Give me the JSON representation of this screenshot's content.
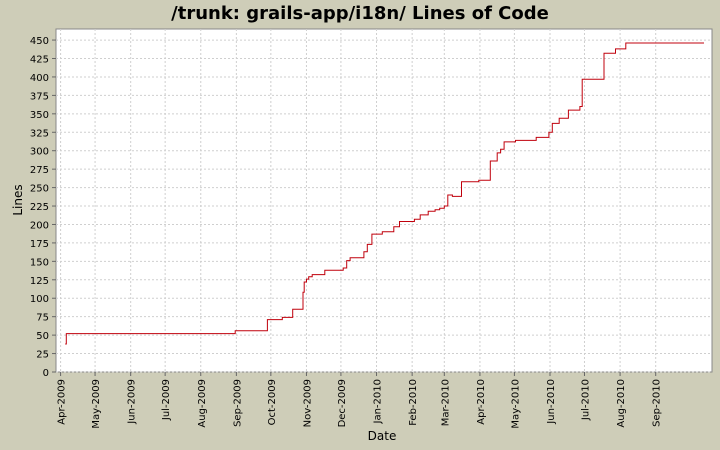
{
  "chart_data": {
    "type": "line",
    "title": "/trunk: grails-app/i18n/ Lines of Code",
    "xlabel": "Date",
    "ylabel": "Lines",
    "ylim": [
      0,
      465
    ],
    "xlim": [
      "2009-03-28",
      "2010-10-20"
    ],
    "grid": true,
    "yticks": [
      0,
      25,
      50,
      75,
      100,
      125,
      150,
      175,
      200,
      225,
      250,
      275,
      300,
      325,
      350,
      375,
      400,
      425,
      450
    ],
    "xticks": [
      {
        "date": "2009-04-01",
        "label": "Apr-2009"
      },
      {
        "date": "2009-05-01",
        "label": "May-2009"
      },
      {
        "date": "2009-06-01",
        "label": "Jun-2009"
      },
      {
        "date": "2009-07-01",
        "label": "Jul-2009"
      },
      {
        "date": "2009-08-01",
        "label": "Aug-2009"
      },
      {
        "date": "2009-09-01",
        "label": "Sep-2009"
      },
      {
        "date": "2009-10-01",
        "label": "Oct-2009"
      },
      {
        "date": "2009-11-01",
        "label": "Nov-2009"
      },
      {
        "date": "2009-12-01",
        "label": "Dec-2009"
      },
      {
        "date": "2010-01-01",
        "label": "Jan-2010"
      },
      {
        "date": "2010-02-01",
        "label": "Feb-2010"
      },
      {
        "date": "2010-03-01",
        "label": "Mar-2010"
      },
      {
        "date": "2010-04-01",
        "label": "Apr-2010"
      },
      {
        "date": "2010-05-01",
        "label": "May-2010"
      },
      {
        "date": "2010-06-01",
        "label": "Jun-2010"
      },
      {
        "date": "2010-07-01",
        "label": "Jul-2010"
      },
      {
        "date": "2010-08-01",
        "label": "Aug-2010"
      },
      {
        "date": "2010-09-01",
        "label": "Sep-2010"
      }
    ],
    "series": [
      {
        "color": "#c0000c",
        "step": true,
        "points": [
          [
            "2009-04-05",
            38
          ],
          [
            "2009-04-06",
            52
          ],
          [
            "2009-08-31",
            56
          ],
          [
            "2009-09-28",
            71
          ],
          [
            "2009-10-11",
            74
          ],
          [
            "2009-10-20",
            85
          ],
          [
            "2009-10-29",
            108
          ],
          [
            "2009-10-30",
            122
          ],
          [
            "2009-11-01",
            126
          ],
          [
            "2009-11-03",
            129
          ],
          [
            "2009-11-06",
            132
          ],
          [
            "2009-11-17",
            138
          ],
          [
            "2009-12-03",
            141
          ],
          [
            "2009-12-06",
            151
          ],
          [
            "2009-12-09",
            155
          ],
          [
            "2009-12-21",
            163
          ],
          [
            "2009-12-24",
            173
          ],
          [
            "2009-12-28",
            187
          ],
          [
            "2010-01-06",
            190
          ],
          [
            "2010-01-16",
            197
          ],
          [
            "2010-01-21",
            204
          ],
          [
            "2010-02-03",
            207
          ],
          [
            "2010-02-08",
            213
          ],
          [
            "2010-02-15",
            218
          ],
          [
            "2010-02-21",
            220
          ],
          [
            "2010-02-25",
            222
          ],
          [
            "2010-03-01",
            225
          ],
          [
            "2010-03-04",
            240
          ],
          [
            "2010-03-08",
            238
          ],
          [
            "2010-03-16",
            258
          ],
          [
            "2010-03-31",
            260
          ],
          [
            "2010-04-10",
            286
          ],
          [
            "2010-04-16",
            297
          ],
          [
            "2010-04-19",
            302
          ],
          [
            "2010-04-22",
            312
          ],
          [
            "2010-05-02",
            314
          ],
          [
            "2010-05-20",
            318
          ],
          [
            "2010-05-31",
            325
          ],
          [
            "2010-06-03",
            337
          ],
          [
            "2010-06-09",
            344
          ],
          [
            "2010-06-17",
            355
          ],
          [
            "2010-06-27",
            360
          ],
          [
            "2010-06-29",
            397
          ],
          [
            "2010-07-18",
            432
          ],
          [
            "2010-07-28",
            438
          ],
          [
            "2010-08-06",
            446
          ],
          [
            "2010-10-13",
            446
          ]
        ]
      }
    ]
  }
}
